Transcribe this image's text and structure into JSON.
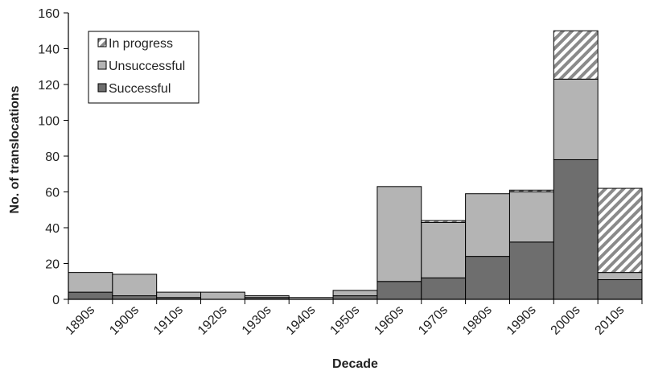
{
  "chart_data": {
    "type": "bar",
    "stacked": true,
    "categories": [
      "1890s",
      "1900s",
      "1910s",
      "1920s",
      "1930s",
      "1940s",
      "1950s",
      "1960s",
      "1970s",
      "1980s",
      "1990s",
      "2000s",
      "2010s"
    ],
    "series": [
      {
        "name": "Successful",
        "color": "#6e6e6e",
        "pattern": "solid",
        "values": [
          4,
          2,
          1,
          0,
          1,
          0,
          2,
          10,
          12,
          24,
          32,
          78,
          11
        ]
      },
      {
        "name": "Unsuccessful",
        "color": "#b4b4b4",
        "pattern": "solid",
        "values": [
          11,
          12,
          3,
          4,
          1,
          1,
          3,
          53,
          31,
          35,
          28,
          45,
          4
        ]
      },
      {
        "name": "In progress",
        "color": "#8a8a8a",
        "pattern": "diagonal-hatch",
        "values": [
          0,
          0,
          0,
          0,
          0,
          0,
          0,
          0,
          1,
          0,
          1,
          27,
          47
        ]
      }
    ],
    "legend_order": [
      "In progress",
      "Unsuccessful",
      "Successful"
    ],
    "legend_position": "top-left",
    "xlabel": "Decade",
    "ylabel": "No. of translocations",
    "ylim": [
      0,
      160
    ],
    "yticks": [
      0,
      20,
      40,
      60,
      80,
      100,
      120,
      140,
      160
    ],
    "grid": false
  }
}
